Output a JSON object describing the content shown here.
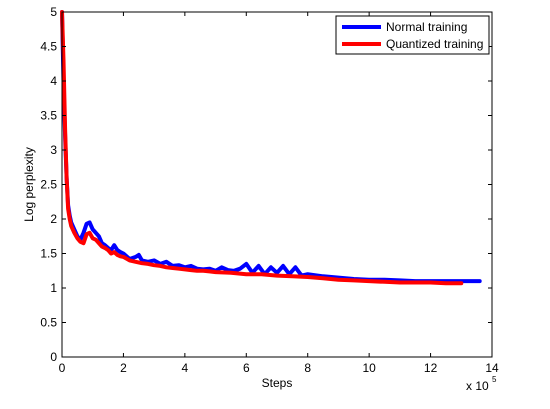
{
  "chart_data": {
    "type": "line",
    "xlabel": "Steps",
    "ylabel": "Log perplexity",
    "x_multiplier": {
      "base": "x 10",
      "exponent": "5"
    },
    "xlim": [
      0,
      14
    ],
    "ylim": [
      0,
      5
    ],
    "xticks": [
      0,
      2,
      4,
      6,
      8,
      10,
      12,
      14
    ],
    "yticks": [
      0,
      0.5,
      1,
      1.5,
      2,
      2.5,
      3,
      3.5,
      4,
      4.5,
      5
    ],
    "xtick_labels": [
      "0",
      "2",
      "4",
      "6",
      "8",
      "10",
      "12",
      "14"
    ],
    "ytick_labels": [
      "0",
      "0.5",
      "1",
      "1.5",
      "2",
      "2.5",
      "3",
      "3.5",
      "4",
      "4.5",
      "5"
    ],
    "grid": false,
    "legend_position": "top-right",
    "series": [
      {
        "name": "Normal training",
        "color": "#0000ff",
        "x": [
          0,
          0.05,
          0.1,
          0.15,
          0.2,
          0.25,
          0.3,
          0.4,
          0.5,
          0.6,
          0.7,
          0.8,
          0.9,
          1.0,
          1.1,
          1.2,
          1.3,
          1.4,
          1.5,
          1.6,
          1.7,
          1.8,
          1.9,
          2.0,
          2.2,
          2.4,
          2.5,
          2.6,
          2.8,
          3.0,
          3.2,
          3.4,
          3.6,
          3.8,
          4.0,
          4.2,
          4.4,
          4.6,
          4.8,
          5.0,
          5.2,
          5.4,
          5.6,
          5.8,
          6.0,
          6.2,
          6.4,
          6.6,
          6.8,
          7.0,
          7.2,
          7.4,
          7.6,
          7.8,
          8.0,
          8.5,
          9.0,
          9.5,
          10.0,
          10.5,
          11.0,
          11.5,
          12.0,
          12.5,
          13.0,
          13.6
        ],
        "y": [
          5.0,
          4.0,
          3.2,
          2.6,
          2.2,
          2.05,
          1.95,
          1.85,
          1.75,
          1.7,
          1.8,
          1.93,
          1.95,
          1.85,
          1.8,
          1.75,
          1.65,
          1.62,
          1.58,
          1.55,
          1.62,
          1.55,
          1.52,
          1.5,
          1.42,
          1.45,
          1.48,
          1.4,
          1.38,
          1.4,
          1.35,
          1.38,
          1.32,
          1.33,
          1.3,
          1.32,
          1.28,
          1.27,
          1.28,
          1.25,
          1.3,
          1.26,
          1.25,
          1.28,
          1.35,
          1.22,
          1.32,
          1.2,
          1.3,
          1.22,
          1.32,
          1.2,
          1.3,
          1.18,
          1.2,
          1.17,
          1.15,
          1.13,
          1.12,
          1.12,
          1.11,
          1.1,
          1.1,
          1.1,
          1.1,
          1.1
        ]
      },
      {
        "name": "Quantized training",
        "color": "#ff0000",
        "x": [
          0,
          0.05,
          0.1,
          0.15,
          0.2,
          0.25,
          0.3,
          0.4,
          0.5,
          0.6,
          0.7,
          0.8,
          0.9,
          1.0,
          1.1,
          1.2,
          1.3,
          1.4,
          1.5,
          1.6,
          1.7,
          1.8,
          1.9,
          2.0,
          2.2,
          2.4,
          2.6,
          2.8,
          3.0,
          3.2,
          3.4,
          3.6,
          3.8,
          4.0,
          4.2,
          4.4,
          4.6,
          4.8,
          5.0,
          5.5,
          6.0,
          6.5,
          7.0,
          7.5,
          8.0,
          8.5,
          9.0,
          9.5,
          10.0,
          10.5,
          11.0,
          11.5,
          12.0,
          12.5,
          13.0
        ],
        "y": [
          5.0,
          4.3,
          3.3,
          2.6,
          2.15,
          2.0,
          1.9,
          1.8,
          1.72,
          1.67,
          1.65,
          1.78,
          1.8,
          1.72,
          1.7,
          1.65,
          1.6,
          1.58,
          1.55,
          1.5,
          1.52,
          1.48,
          1.46,
          1.45,
          1.4,
          1.38,
          1.36,
          1.35,
          1.33,
          1.32,
          1.3,
          1.29,
          1.28,
          1.27,
          1.26,
          1.25,
          1.25,
          1.24,
          1.23,
          1.22,
          1.2,
          1.2,
          1.18,
          1.17,
          1.16,
          1.14,
          1.12,
          1.11,
          1.1,
          1.09,
          1.08,
          1.08,
          1.08,
          1.07,
          1.07
        ]
      }
    ]
  }
}
